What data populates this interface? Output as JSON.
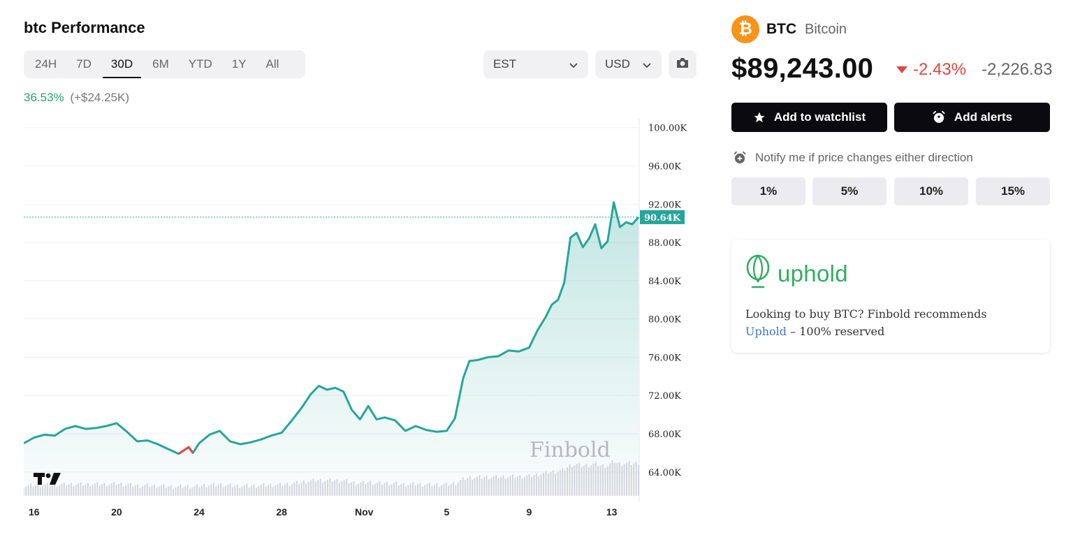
{
  "performance": {
    "title": "btc Performance",
    "ranges": [
      "24H",
      "7D",
      "30D",
      "6M",
      "YTD",
      "1Y",
      "All"
    ],
    "active_range": "30D",
    "timezone": "EST",
    "currency": "USD",
    "change_pct": "36.53%",
    "change_abs": "(+$24.25K)"
  },
  "coin": {
    "symbol": "BTC",
    "name": "Bitcoin",
    "icon": "bitcoin-icon",
    "price": "$89,243.00",
    "change_pct": "-2.43%",
    "change_abs": "-2,226.83"
  },
  "actions": {
    "watchlist_label": "Add to watchlist",
    "alerts_label": "Add alerts"
  },
  "notify": {
    "label": "Notify me if price changes either direction",
    "options": [
      "1%",
      "5%",
      "10%",
      "15%"
    ]
  },
  "promo": {
    "brand": "uphold",
    "text": "Looking to buy BTC? Finbold recommends",
    "link_text": "Uphold",
    "suffix": " – 100% reserved"
  },
  "colors": {
    "line": "#26a69a",
    "negative": "#e0463f",
    "positive": "#26a36a",
    "accent_btc": "#f7931a"
  },
  "chart_data": {
    "type": "area",
    "watermark": "Finbold",
    "current_value_label": "90.64K",
    "current_value": 90640,
    "y_ticks": [
      "100.00K",
      "96.00K",
      "92.00K",
      "88.00K",
      "84.00K",
      "80.00K",
      "76.00K",
      "72.00K",
      "68.00K",
      "64.00K"
    ],
    "y_tick_values": [
      100000,
      96000,
      92000,
      88000,
      84000,
      80000,
      76000,
      72000,
      68000,
      64000
    ],
    "ylim": [
      61500,
      100200
    ],
    "x_ticks": [
      "16",
      "20",
      "24",
      "28",
      "Nov",
      "5",
      "9",
      "13"
    ],
    "x_tick_days": [
      16,
      20,
      24,
      28,
      32,
      36,
      40,
      44
    ],
    "xlim": [
      15.5,
      45.3
    ],
    "series": [
      {
        "x": [
          15.5,
          16.0,
          16.5,
          17.0,
          17.5,
          18.0,
          18.5,
          19.0,
          19.5,
          20.0,
          20.5,
          21.0,
          21.5,
          22.0,
          22.5,
          23.0,
          23.5,
          23.7,
          24.0,
          24.5,
          25.0,
          25.5,
          26.0,
          26.5,
          27.0,
          27.5,
          28.0,
          28.5,
          29.0,
          29.4,
          29.8,
          30.2,
          30.6,
          31.0,
          31.4,
          31.8,
          32.2,
          32.6,
          33.0,
          33.5,
          34.0,
          34.5,
          35.0,
          35.5,
          36.0,
          36.4,
          36.8,
          37.1,
          37.5,
          38.0,
          38.5,
          39.0,
          39.5,
          40.0,
          40.4,
          40.8,
          41.1,
          41.4,
          41.7,
          42.0,
          42.3,
          42.6,
          42.9,
          43.2,
          43.5,
          43.8,
          44.1,
          44.4,
          44.7,
          45.0,
          45.3
        ],
        "values": [
          67000,
          67600,
          67900,
          67800,
          68500,
          68800,
          68500,
          68600,
          68800,
          69100,
          68200,
          67200,
          67300,
          66900,
          66400,
          65900,
          66600,
          66000,
          67000,
          67900,
          68300,
          67200,
          66900,
          67100,
          67400,
          67800,
          68100,
          69400,
          70800,
          72100,
          73000,
          72600,
          72800,
          72400,
          70500,
          69500,
          70900,
          69500,
          69700,
          69400,
          68300,
          68800,
          68400,
          68200,
          68300,
          69600,
          73800,
          75600,
          75700,
          76000,
          76100,
          76700,
          76600,
          77000,
          78800,
          80200,
          81500,
          82000,
          83800,
          88500,
          89000,
          87500,
          88400,
          89900,
          87400,
          88100,
          92200,
          89600,
          90100,
          89900,
          90640
        ]
      }
    ],
    "negative_segment_days": [
      23.0,
      23.7
    ],
    "volume_note": "volume histogram at bottom"
  }
}
